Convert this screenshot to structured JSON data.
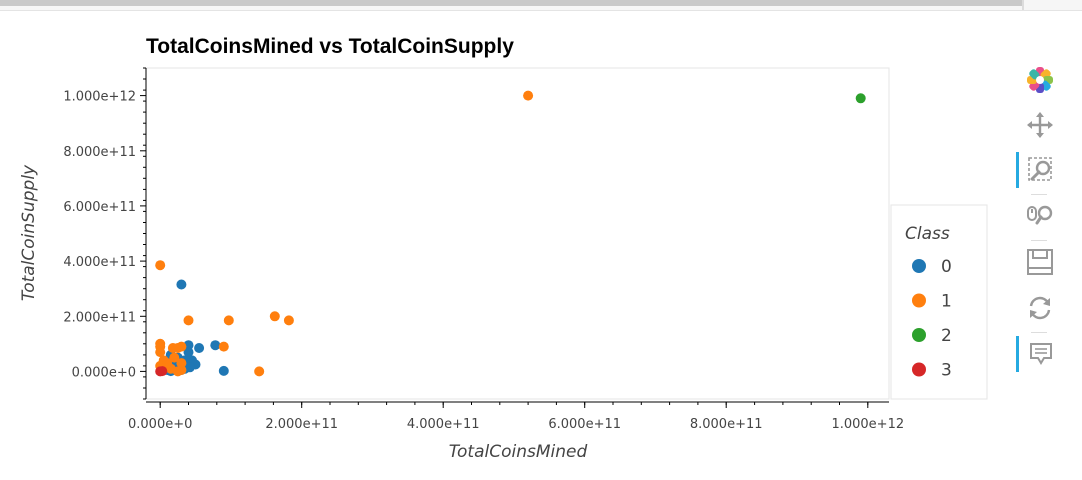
{
  "chart_data": {
    "type": "scatter",
    "title": "TotalCoinsMined vs TotalCoinSupply",
    "xlabel": "TotalCoinsMined",
    "ylabel": "TotalCoinSupply",
    "xlim": [
      -20000000000.0,
      1030000000000.0
    ],
    "ylim": [
      -100000000000.0,
      1100000000000.0
    ],
    "x_ticks": [
      0,
      200000000000.0,
      400000000000.0,
      600000000000.0,
      800000000000.0,
      1000000000000.0
    ],
    "x_tick_labels": [
      "0.000e+0",
      "2.000e+11",
      "4.000e+11",
      "6.000e+11",
      "8.000e+11",
      "1.000e+12"
    ],
    "y_ticks": [
      0,
      200000000000.0,
      400000000000.0,
      600000000000.0,
      800000000000.0,
      1000000000000.0
    ],
    "y_tick_labels": [
      "0.000e+0",
      "2.000e+11",
      "4.000e+11",
      "6.000e+11",
      "8.000e+11",
      "1.000e+12"
    ],
    "grid": false,
    "legend": {
      "title": "Class",
      "placement": "right"
    },
    "series": [
      {
        "name": "0",
        "color": "#1f77b4",
        "points": [
          [
            30000000000.0,
            315000000000.0
          ],
          [
            40000000000.0,
            95000000000.0
          ],
          [
            78000000000.0,
            95000000000.0
          ],
          [
            55000000000.0,
            85000000000.0
          ],
          [
            90000000000.0,
            2000000000.0
          ],
          [
            50000000000.0,
            25000000000.0
          ],
          [
            35000000000.0,
            40000000000.0
          ],
          [
            25000000000.0,
            50000000000.0
          ],
          [
            15000000000.0,
            60000000000.0
          ],
          [
            30000000000.0,
            20000000000.0
          ],
          [
            20000000000.0,
            10000000000.0
          ],
          [
            10000000000.0,
            5000000000.0
          ],
          [
            5000000000.0,
            30000000000.0
          ],
          [
            40000000000.0,
            70000000000.0
          ],
          [
            25000000000.0,
            30000000000.0
          ],
          [
            35000000000.0,
            10000000000.0
          ],
          [
            12000000000.0,
            15000000000.0
          ],
          [
            20000000000.0,
            45000000000.0
          ],
          [
            45000000000.0,
            40000000000.0
          ],
          [
            15000000000.0,
            1000000000.0
          ],
          [
            30000000000.0,
            5000000000.0
          ],
          [
            22000000000.0,
            25000000000.0
          ],
          [
            8000000000.0,
            20000000000.0
          ],
          [
            42000000000.0,
            15000000000.0
          ]
        ]
      },
      {
        "name": "1",
        "color": "#ff7f0e",
        "points": [
          [
            520000000000.0,
            1000000000000.0
          ],
          [
            0,
            385000000000.0
          ],
          [
            40000000000.0,
            185000000000.0
          ],
          [
            97000000000.0,
            185000000000.0
          ],
          [
            162000000000.0,
            200000000000.0
          ],
          [
            182000000000.0,
            185000000000.0
          ],
          [
            0,
            100000000000.0
          ],
          [
            0,
            90000000000.0
          ],
          [
            18000000000.0,
            85000000000.0
          ],
          [
            30000000000.0,
            90000000000.0
          ],
          [
            25000000000.0,
            85000000000.0
          ],
          [
            90000000000.0,
            90000000000.0
          ],
          [
            140000000000.0,
            0
          ],
          [
            0,
            70000000000.0
          ],
          [
            5000000000.0,
            40000000000.0
          ],
          [
            10000000000.0,
            20000000000.0
          ],
          [
            25000000000.0,
            0
          ],
          [
            30000000000.0,
            30000000000.0
          ],
          [
            15000000000.0,
            10000000000.0
          ],
          [
            0,
            20000000000.0
          ],
          [
            20000000000.0,
            50000000000.0
          ],
          [
            30000000000.0,
            5000000000.0
          ],
          [
            2000000000.0,
            10000000000.0
          ],
          [
            10000000000.0,
            30000000000.0
          ]
        ]
      },
      {
        "name": "2",
        "color": "#2ca02c",
        "points": [
          [
            990000000000.0,
            990000000000.0
          ]
        ]
      },
      {
        "name": "3",
        "color": "#d62728",
        "points": [
          [
            0,
            0
          ],
          [
            3000000000.0,
            1000000000.0
          ]
        ]
      }
    ]
  },
  "toolbar": {
    "items": [
      {
        "name": "bokeh-logo-icon",
        "active": false
      },
      {
        "name": "pan-icon",
        "active": false
      },
      {
        "name": "box-zoom-icon",
        "active": true
      },
      {
        "name": "wheel-zoom-icon",
        "active": false
      },
      {
        "name": "save-icon",
        "active": false
      },
      {
        "name": "reset-icon",
        "active": false
      },
      {
        "name": "hover-icon",
        "active": true
      }
    ]
  }
}
